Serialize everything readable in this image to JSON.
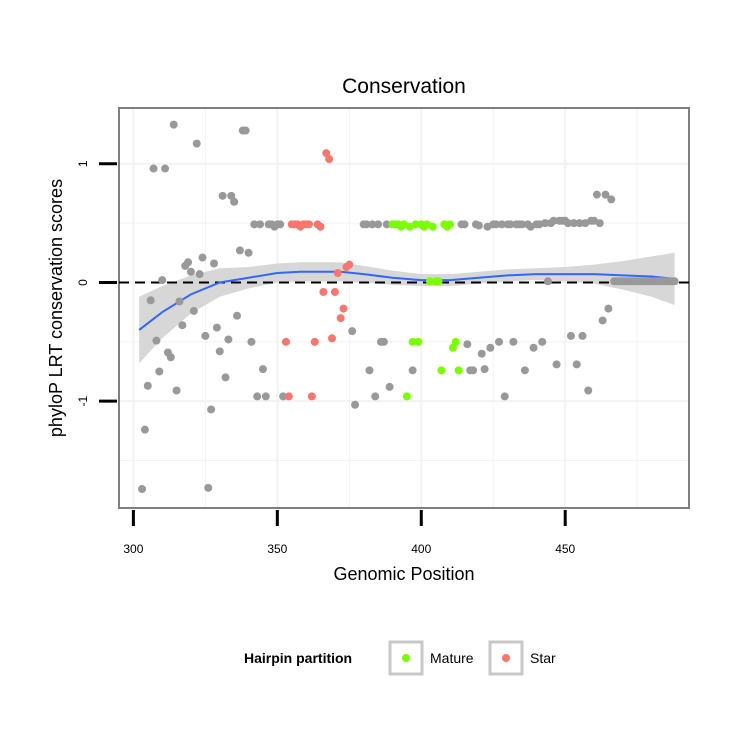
{
  "chart_data": {
    "type": "scatter",
    "title": "Conservation",
    "xlabel": "Genomic Position",
    "ylabel": "phyloP LRT conservation scores",
    "xlim": [
      295,
      493
    ],
    "ylim": [
      -1.9,
      1.47
    ],
    "x_ticks": [
      300,
      350,
      400,
      450
    ],
    "x_tick_labels": [
      "300",
      "350",
      "400",
      "450"
    ],
    "y_ticks": [
      -1,
      0,
      1
    ],
    "y_tick_labels": [
      "-1",
      "0",
      "1"
    ],
    "grid": true,
    "reference_line": {
      "y": 0,
      "style": "dashed"
    },
    "legend": {
      "title": "Hairpin partition",
      "placement": "bottom",
      "entries": [
        {
          "label": "Mature",
          "color": "#7cfc00"
        },
        {
          "label": "Star",
          "color": "#f8766d"
        }
      ]
    },
    "colors": {
      "other": "#999999",
      "Mature": "#7cfc00",
      "Star": "#f8766d",
      "smooth": "#3366ff",
      "band": "#d3d3d3"
    },
    "series": [
      {
        "group": "other",
        "points": [
          [
            303,
            -1.74
          ],
          [
            304,
            -1.24
          ],
          [
            305,
            -0.87
          ],
          [
            306,
            -0.15
          ],
          [
            307,
            0.96
          ],
          [
            308,
            -0.49
          ],
          [
            309,
            -0.75
          ],
          [
            310,
            0.02
          ],
          [
            311,
            0.96
          ],
          [
            312,
            -0.59
          ],
          [
            313,
            -0.63
          ],
          [
            314,
            1.33
          ],
          [
            315,
            -0.91
          ],
          [
            316,
            -0.16
          ],
          [
            317,
            -0.36
          ],
          [
            318,
            0.14
          ],
          [
            319,
            0.17
          ],
          [
            320,
            0.09
          ],
          [
            321,
            -0.24
          ],
          [
            322,
            1.17
          ],
          [
            323,
            0.07
          ],
          [
            324,
            0.21
          ],
          [
            325,
            -0.45
          ],
          [
            326,
            -1.73
          ],
          [
            327,
            -1.07
          ],
          [
            328,
            0.16
          ],
          [
            329,
            -0.38
          ],
          [
            330,
            -0.58
          ],
          [
            331,
            0.73
          ],
          [
            332,
            -0.8
          ],
          [
            333,
            -0.48
          ],
          [
            334,
            0.73
          ],
          [
            335,
            0.68
          ],
          [
            336,
            -0.28
          ],
          [
            337,
            0.27
          ],
          [
            338,
            1.28
          ],
          [
            339,
            1.28
          ],
          [
            340,
            0.25
          ],
          [
            341,
            -0.5
          ],
          [
            342,
            0.49
          ],
          [
            343,
            -0.96
          ],
          [
            344,
            0.49
          ],
          [
            345,
            -0.73
          ],
          [
            346,
            -0.96
          ],
          [
            347,
            0.49
          ],
          [
            348,
            0.49
          ],
          [
            349,
            0.47
          ],
          [
            350,
            0.49
          ],
          [
            351,
            0.49
          ],
          [
            352,
            -0.96
          ],
          [
            376,
            -0.41
          ],
          [
            377,
            -1.03
          ],
          [
            380,
            0.49
          ],
          [
            381,
            0.49
          ],
          [
            382,
            -0.74
          ],
          [
            383,
            0.49
          ],
          [
            384,
            -0.96
          ],
          [
            385,
            0.49
          ],
          [
            386,
            -0.5
          ],
          [
            387,
            -0.5
          ],
          [
            388,
            0.49
          ],
          [
            389,
            -0.88
          ],
          [
            397,
            -0.74
          ],
          [
            414,
            0.49
          ],
          [
            415,
            0.49
          ],
          [
            416,
            -0.52
          ],
          [
            417,
            -0.74
          ],
          [
            418,
            -0.74
          ],
          [
            419,
            0.49
          ],
          [
            420,
            0.48
          ],
          [
            421,
            -0.6
          ],
          [
            422,
            -0.73
          ],
          [
            423,
            0.47
          ],
          [
            424,
            -0.55
          ],
          [
            425,
            0.49
          ],
          [
            426,
            0.49
          ],
          [
            427,
            -0.5
          ],
          [
            428,
            0.49
          ],
          [
            429,
            -0.96
          ],
          [
            430,
            0.49
          ],
          [
            431,
            0.49
          ],
          [
            432,
            -0.5
          ],
          [
            433,
            0.49
          ],
          [
            434,
            0.49
          ],
          [
            435,
            0.49
          ],
          [
            436,
            -0.74
          ],
          [
            437,
            0.49
          ],
          [
            438,
            0.47
          ],
          [
            439,
            -0.55
          ],
          [
            440,
            0.49
          ],
          [
            441,
            0.49
          ],
          [
            442,
            -0.5
          ],
          [
            443,
            0.5
          ],
          [
            444,
            0.01
          ],
          [
            445,
            0.5
          ],
          [
            446,
            0.52
          ],
          [
            447,
            -0.69
          ],
          [
            448,
            0.52
          ],
          [
            449,
            0.52
          ],
          [
            450,
            0.52
          ],
          [
            451,
            0.5
          ],
          [
            452,
            -0.45
          ],
          [
            453,
            0.5
          ],
          [
            454,
            -0.69
          ],
          [
            455,
            0.5
          ],
          [
            456,
            -0.45
          ],
          [
            457,
            0.5
          ],
          [
            458,
            -0.91
          ],
          [
            459,
            0.52
          ],
          [
            460,
            0.52
          ],
          [
            461,
            0.74
          ],
          [
            462,
            0.5
          ],
          [
            463,
            -0.32
          ],
          [
            464,
            0.74
          ],
          [
            465,
            -0.22
          ],
          [
            466,
            0.7
          ],
          [
            467,
            0.01
          ],
          [
            468,
            0.01
          ],
          [
            469,
            0.01
          ],
          [
            470,
            0.01
          ],
          [
            471,
            0.01
          ],
          [
            472,
            0.01
          ],
          [
            473,
            0.01
          ],
          [
            474,
            0.01
          ],
          [
            475,
            0.01
          ],
          [
            476,
            0.01
          ],
          [
            477,
            0.01
          ],
          [
            478,
            0.01
          ],
          [
            479,
            0.01
          ],
          [
            480,
            0.01
          ],
          [
            481,
            0.01
          ],
          [
            482,
            0.01
          ],
          [
            483,
            0.01
          ],
          [
            484,
            0.01
          ],
          [
            485,
            0.01
          ],
          [
            486,
            0.01
          ],
          [
            487,
            0.01
          ],
          [
            488,
            0.01
          ]
        ]
      },
      {
        "group": "Mature",
        "points": [
          [
            390,
            0.49
          ],
          [
            391,
            0.49
          ],
          [
            392,
            0.49
          ],
          [
            393,
            0.47
          ],
          [
            394,
            0.49
          ],
          [
            395,
            -0.96
          ],
          [
            396,
            0.47
          ],
          [
            397,
            -0.5
          ],
          [
            398,
            0.49
          ],
          [
            399,
            -0.5
          ],
          [
            400,
            0.49
          ],
          [
            401,
            0.47
          ],
          [
            402,
            0.49
          ],
          [
            403,
            0.01
          ],
          [
            404,
            0.47
          ],
          [
            405,
            0.01
          ],
          [
            406,
            0.01
          ],
          [
            407,
            -0.74
          ],
          [
            408,
            0.49
          ],
          [
            409,
            0.47
          ],
          [
            410,
            0.49
          ],
          [
            411,
            -0.55
          ],
          [
            412,
            -0.5
          ],
          [
            413,
            -0.74
          ]
        ]
      },
      {
        "group": "Star",
        "points": [
          [
            353,
            -0.5
          ],
          [
            354,
            -0.96
          ],
          [
            355,
            0.49
          ],
          [
            356,
            0.49
          ],
          [
            357,
            0.49
          ],
          [
            358,
            0.47
          ],
          [
            359,
            0.49
          ],
          [
            360,
            0.49
          ],
          [
            361,
            0.49
          ],
          [
            362,
            -0.96
          ],
          [
            363,
            -0.5
          ],
          [
            364,
            0.49
          ],
          [
            365,
            0.47
          ],
          [
            366,
            -0.08
          ],
          [
            367,
            1.09
          ],
          [
            368,
            1.04
          ],
          [
            369,
            -0.47
          ],
          [
            370,
            -0.08
          ],
          [
            371,
            0.08
          ],
          [
            372,
            -0.3
          ],
          [
            373,
            -0.22
          ],
          [
            374,
            0.13
          ],
          [
            375,
            0.15
          ]
        ]
      }
    ],
    "smooth": {
      "x": [
        302,
        310,
        320,
        330,
        340,
        350,
        358,
        365,
        372,
        380,
        390,
        400,
        410,
        420,
        430,
        440,
        450,
        460,
        470,
        480,
        488
      ],
      "y": [
        -0.4,
        -0.25,
        -0.1,
        0.0,
        0.04,
        0.08,
        0.09,
        0.09,
        0.09,
        0.07,
        0.04,
        0.02,
        0.02,
        0.04,
        0.06,
        0.07,
        0.07,
        0.07,
        0.06,
        0.05,
        0.03
      ],
      "band_half_width": [
        0.28,
        0.22,
        0.16,
        0.12,
        0.09,
        0.08,
        0.08,
        0.08,
        0.08,
        0.07,
        0.06,
        0.05,
        0.05,
        0.05,
        0.05,
        0.05,
        0.06,
        0.08,
        0.12,
        0.17,
        0.22
      ]
    }
  }
}
